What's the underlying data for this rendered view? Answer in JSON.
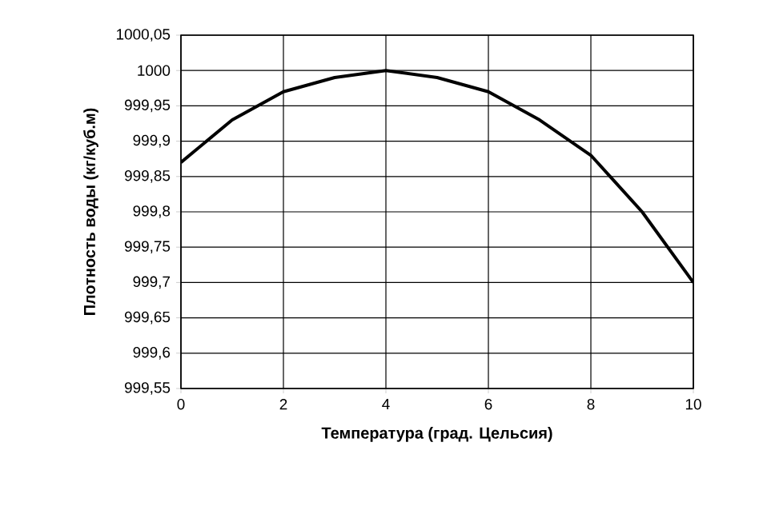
{
  "chart_data": {
    "type": "line",
    "xlabel": "Температура (град. Цельсия)",
    "ylabel": "Плотность воды (кг/куб.м)",
    "x": [
      0,
      1,
      2,
      3,
      4,
      5,
      6,
      7,
      8,
      9,
      10
    ],
    "series": [
      {
        "color": "#000000",
        "values": [
          999.87,
          999.93,
          999.97,
          999.99,
          1000.0,
          999.99,
          999.97,
          999.93,
          999.88,
          999.8,
          999.7
        ]
      }
    ],
    "xlim": [
      0,
      10
    ],
    "xticks": [
      0,
      2,
      4,
      6,
      8,
      10
    ],
    "ylim": [
      999.55,
      1000.05
    ],
    "yticks": [
      {
        "value": 999.55,
        "label": "999,55"
      },
      {
        "value": 999.6,
        "label": "999,6"
      },
      {
        "value": 999.65,
        "label": "999,65"
      },
      {
        "value": 999.7,
        "label": "999,7"
      },
      {
        "value": 999.75,
        "label": "999,75"
      },
      {
        "value": 999.8,
        "label": "999,8"
      },
      {
        "value": 999.85,
        "label": "999,85"
      },
      {
        "value": 999.9,
        "label": "999,9"
      },
      {
        "value": 999.95,
        "label": "999,95"
      },
      {
        "value": 1000,
        "label": "1000"
      },
      {
        "value": 1000.05,
        "label": "1000,05"
      }
    ],
    "grid": true,
    "marker": "none",
    "line_style": "solid"
  }
}
